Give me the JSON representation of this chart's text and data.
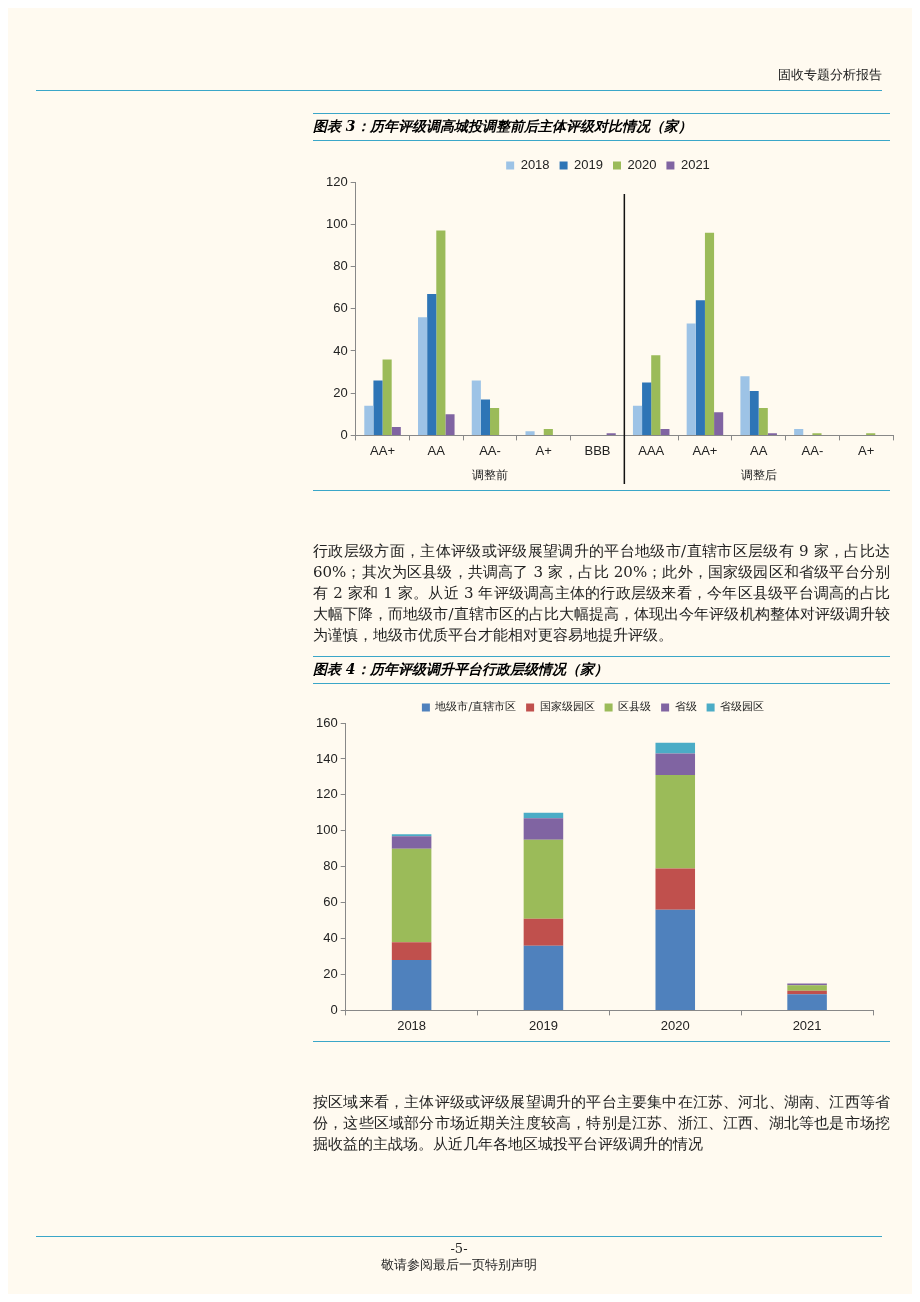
{
  "chart_data": [
    {
      "type": "bar",
      "title": "图表 3：历年评级调高城投调整前后主体评级对比情况（家）",
      "categories": [
        "AA+",
        "AA",
        "AA-",
        "A+",
        "BBB",
        "AAA",
        "AA+",
        "AA",
        "AA-",
        "A+"
      ],
      "series": [
        {
          "name": "2018",
          "color": "#9dc3e6",
          "values": [
            14,
            56,
            26,
            2,
            0,
            14,
            53,
            28,
            3,
            0
          ]
        },
        {
          "name": "2019",
          "color": "#2e75b6",
          "values": [
            26,
            67,
            17,
            0,
            0,
            25,
            64,
            21,
            0,
            0
          ]
        },
        {
          "name": "2020",
          "color": "#9bbb59",
          "values": [
            36,
            97,
            13,
            3,
            0,
            38,
            96,
            13,
            1,
            1
          ]
        },
        {
          "name": "2021",
          "color": "#8064a2",
          "values": [
            4,
            10,
            0,
            0,
            1,
            3,
            11,
            1,
            0,
            0
          ]
        }
      ],
      "ylim": [
        0,
        120
      ],
      "yticks": [
        0,
        20,
        40,
        60,
        80,
        100,
        120
      ],
      "grid": false,
      "legend": "top",
      "annotations": [
        "固收专题分析报告",
        "调整前",
        "调整后",
        "行政层级方面，主体评级或评级展望调升的平台地级市/直辖市区层级有 9 家，占比达 60%；其次为区县级，共调高了 3 家，占比 20%；此外，国家级园区和省级平台分别有 2 家和 1 家。从近 3 年评级调高主体的行政层级来看，今年区县级平台调高的占比大幅下降，而地级市/直辖市区的占比大幅提高，体现出今年评级机构整体对评级调升较为谨慎，地级市优质平台才能相对更容易地提升评级。"
      ]
    },
    {
      "type": "bar",
      "title": "图表 4：历年评级调升平台行政层级情况（家）",
      "stacked": true,
      "categories": [
        "2018",
        "2019",
        "2020",
        "2021"
      ],
      "series": [
        {
          "name": "地级市/直辖市区",
          "color": "#4f81bd",
          "values": [
            28,
            36,
            56,
            9
          ]
        },
        {
          "name": "国家级园区",
          "color": "#c0504d",
          "values": [
            10,
            15,
            23,
            2
          ]
        },
        {
          "name": "区县级",
          "color": "#9bbb59",
          "values": [
            52,
            44,
            52,
            3
          ]
        },
        {
          "name": "省级",
          "color": "#8064a2",
          "values": [
            7,
            12,
            12,
            1
          ]
        },
        {
          "name": "省级园区",
          "color": "#4bacc6",
          "values": [
            1,
            3,
            6,
            0
          ]
        }
      ],
      "ylim": [
        0,
        160
      ],
      "yticks": [
        0,
        20,
        40,
        60,
        80,
        100,
        120,
        140,
        160
      ],
      "grid": false,
      "legend": "top",
      "annotations": [
        "按区域来看，主体评级或评级展望调升的平台主要集中在江苏、河北、湖南、江西等省份，这些区域部分市场近期关注度较高，特别是江苏、浙江、江西、湖北等也是市场挖掘收益的主战场。从近几年各地区城投平台评级调升的情况",
        "-5-",
        "敬请参阅最后一页特别声明"
      ]
    }
  ]
}
